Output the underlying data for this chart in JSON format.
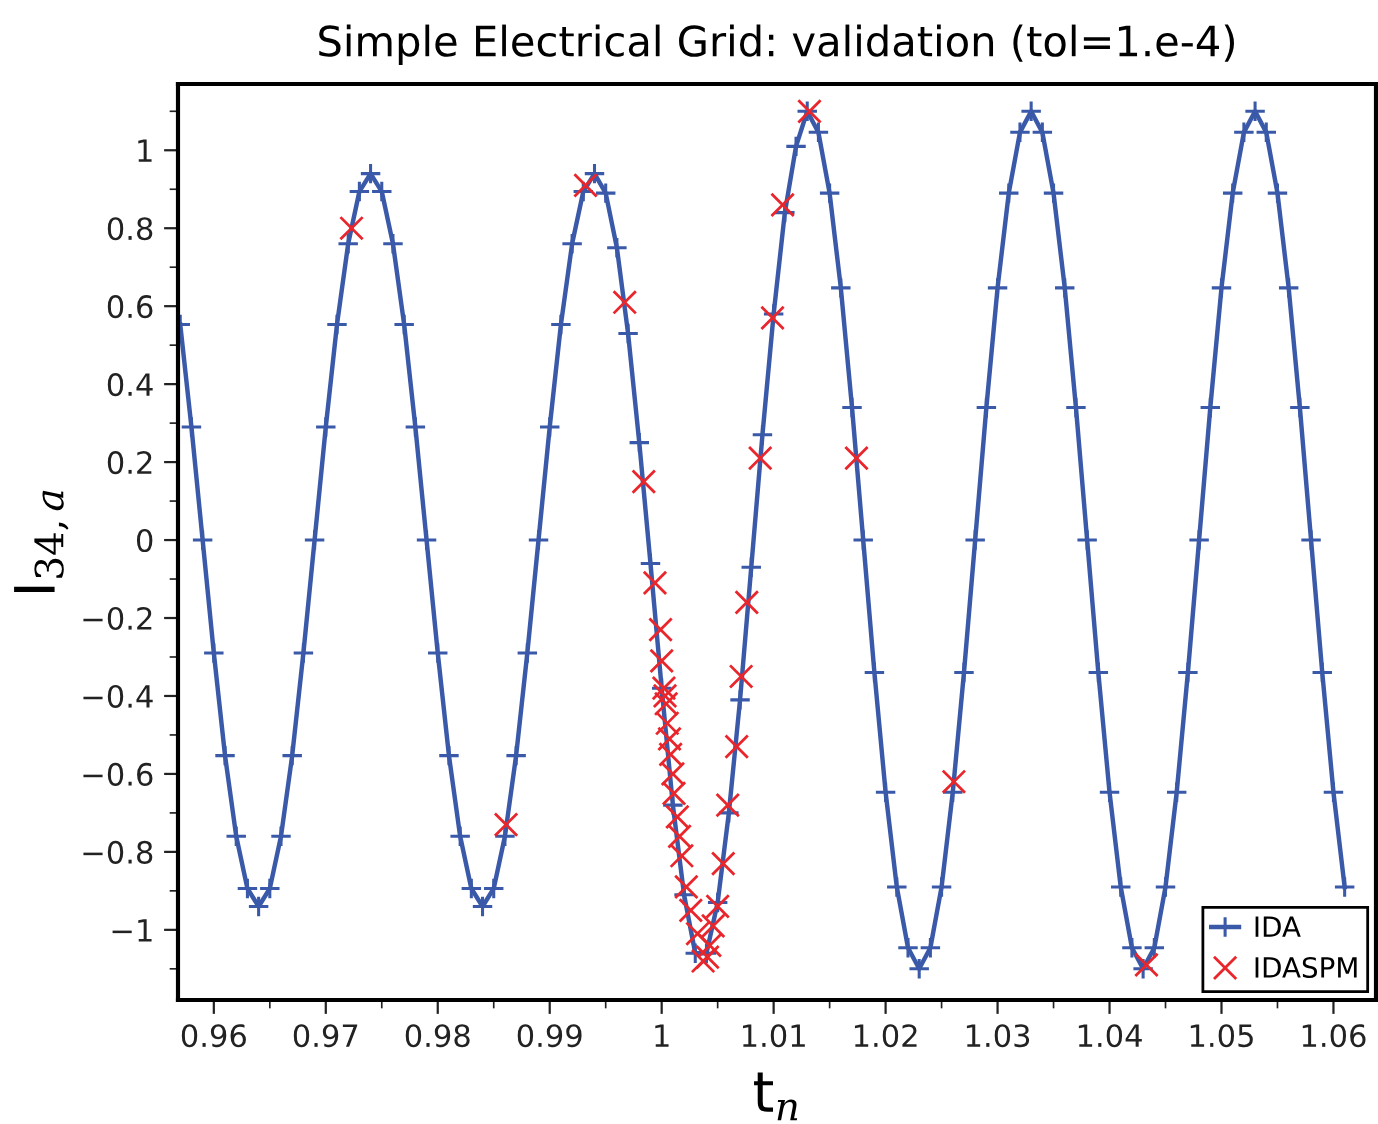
{
  "chart_data": {
    "type": "line",
    "title": "Simple Electrical Grid: validation (tol=1.e-4)",
    "xlabel": "t$_{n}$",
    "ylabel": "I$_{34,a}$",
    "xlim": [
      0.9568,
      1.0638
    ],
    "ylim": [
      -1.18,
      1.17
    ],
    "xticks": [
      0.96,
      0.97,
      0.98,
      0.99,
      {
        "value": 1.0,
        "label": "1"
      },
      1.01,
      1.02,
      1.03,
      1.04,
      1.05,
      1.06
    ],
    "yticks": [
      {
        "value": -1,
        "label": "−1"
      },
      {
        "value": -0.8,
        "label": "−0.8"
      },
      {
        "value": -0.6,
        "label": "−0.6"
      },
      {
        "value": -0.4,
        "label": "−0.4"
      },
      {
        "value": -0.2,
        "label": "−0.2"
      },
      0,
      0.2,
      0.4,
      0.6,
      0.8,
      1
    ],
    "grid": false,
    "legend": "bottom right",
    "series": [
      {
        "name": "IDA",
        "marker": "plus",
        "color": "#3a59a8",
        "x": [
          0.957,
          0.958,
          0.959,
          0.96,
          0.961,
          0.962,
          0.963,
          0.964,
          0.965,
          0.966,
          0.967,
          0.968,
          0.969,
          0.97,
          0.971,
          0.972,
          0.973,
          0.974,
          0.975,
          0.976,
          0.977,
          0.978,
          0.979,
          0.98,
          0.981,
          0.982,
          0.983,
          0.984,
          0.985,
          0.986,
          0.987,
          0.988,
          0.989,
          0.99,
          0.991,
          0.992,
          0.993,
          0.994,
          0.995,
          0.996,
          0.997,
          0.998,
          0.999,
          1.0,
          1.001,
          1.002,
          1.003,
          1.004,
          1.005,
          1.006,
          1.007,
          1.008,
          1.009,
          1.01,
          1.011,
          1.012,
          1.013,
          1.014,
          1.015,
          1.016,
          1.017,
          1.018,
          1.019,
          1.02,
          1.021,
          1.022,
          1.023,
          1.024,
          1.025,
          1.026,
          1.027,
          1.028,
          1.029,
          1.03,
          1.031,
          1.032,
          1.033,
          1.034,
          1.035,
          1.036,
          1.037,
          1.038,
          1.039,
          1.04,
          1.041,
          1.042,
          1.043,
          1.044,
          1.045,
          1.046,
          1.047,
          1.048,
          1.049,
          1.05,
          1.051,
          1.052,
          1.053,
          1.054,
          1.055,
          1.056,
          1.057,
          1.058,
          1.059,
          1.06,
          1.061
        ],
        "values": [
          0.553,
          0.29,
          0,
          -0.29,
          -0.553,
          -0.76,
          -0.894,
          -0.94,
          -0.894,
          -0.76,
          -0.553,
          -0.29,
          0,
          0.29,
          0.553,
          0.76,
          0.894,
          0.94,
          0.894,
          0.76,
          0.553,
          0.29,
          0,
          -0.29,
          -0.553,
          -0.76,
          -0.894,
          -0.94,
          -0.894,
          -0.76,
          -0.553,
          -0.29,
          0,
          0.29,
          0.553,
          0.76,
          0.894,
          0.94,
          0.89,
          0.75,
          0.53,
          0.25,
          -0.06,
          -0.38,
          -0.68,
          -0.91,
          -1.06,
          -1.06,
          -0.93,
          -0.7,
          -0.41,
          -0.07,
          0.27,
          0.58,
          0.84,
          1.01,
          1.1,
          1.046,
          0.89,
          0.647,
          0.34,
          0,
          -0.34,
          -0.647,
          -0.89,
          -1.046,
          -1.1,
          -1.046,
          -0.89,
          -0.647,
          -0.34,
          0,
          0.34,
          0.647,
          0.89,
          1.046,
          1.1,
          1.046,
          0.89,
          0.647,
          0.34,
          0,
          -0.34,
          -0.647,
          -0.89,
          -1.046,
          -1.1,
          -1.046,
          -0.89,
          -0.647,
          -0.34,
          0,
          0.34,
          0.647,
          0.89,
          1.046,
          1.1,
          1.046,
          0.89,
          0.647,
          0.34,
          0,
          -0.34,
          -0.647,
          -0.89
        ]
      },
      {
        "name": "IDASPM",
        "type": "scatter",
        "marker": "cross",
        "color": "#e8262c",
        "x": [
          0.9723,
          0.9861,
          0.9932,
          0.9967,
          0.9984,
          0.9994,
          0.9999,
          1.0,
          1.0002,
          1.0003,
          1.0004,
          1.0005,
          1.0007,
          1.0008,
          1.001,
          1.0011,
          1.0014,
          1.0016,
          1.0018,
          1.0022,
          1.0026,
          1.0032,
          1.0037,
          1.0041,
          1.0043,
          1.0046,
          1.005,
          1.0055,
          1.0059,
          1.0067,
          1.0071,
          1.0076,
          1.0088,
          1.0099,
          1.0108,
          1.0132,
          1.0174,
          1.0261,
          1.0433
        ],
        "values": [
          0.8,
          -0.73,
          0.91,
          0.61,
          0.15,
          -0.11,
          -0.23,
          -0.31,
          -0.38,
          -0.4,
          -0.42,
          -0.47,
          -0.51,
          -0.55,
          -0.6,
          -0.65,
          -0.71,
          -0.76,
          -0.81,
          -0.89,
          -0.95,
          -1.01,
          -1.08,
          -1.07,
          -1.04,
          -0.99,
          -0.94,
          -0.83,
          -0.68,
          -0.53,
          -0.35,
          -0.16,
          0.21,
          0.57,
          0.86,
          1.1,
          0.21,
          -0.62,
          -1.09
        ]
      }
    ]
  }
}
